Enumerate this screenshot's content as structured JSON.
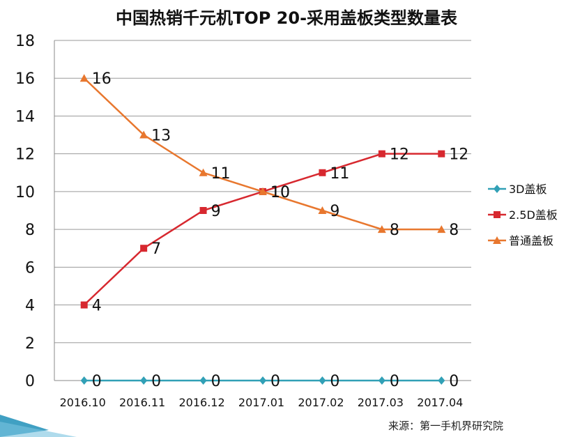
{
  "chart_data": {
    "type": "line",
    "title": "中国热销千元机TOP 20-采用盖板类型数量表",
    "categories": [
      "2016.10",
      "2016.11",
      "2016.12",
      "2017.01",
      "2017.02",
      "2017.03",
      "2017.04"
    ],
    "series": [
      {
        "name": "3D盖板",
        "values": [
          0,
          0,
          0,
          0,
          0,
          0,
          0
        ],
        "color": "#31a0b6",
        "marker": "diamond"
      },
      {
        "name": "2.5D盖板",
        "values": [
          4,
          7,
          9,
          10,
          11,
          12,
          12
        ],
        "color": "#d7282f",
        "marker": "square"
      },
      {
        "name": "普通盖板",
        "values": [
          16,
          13,
          11,
          10,
          9,
          8,
          8
        ],
        "color": "#e8772e",
        "marker": "triangle"
      }
    ],
    "yticks": [
      "0",
      "2",
      "4",
      "6",
      "8",
      "10",
      "12",
      "14",
      "16",
      "18"
    ],
    "ylim": [
      0,
      18
    ],
    "xlabel": "",
    "ylabel": "",
    "grid": true,
    "legend_position": "right",
    "data_labels": true
  },
  "source": "来源：第一手机界研究院"
}
